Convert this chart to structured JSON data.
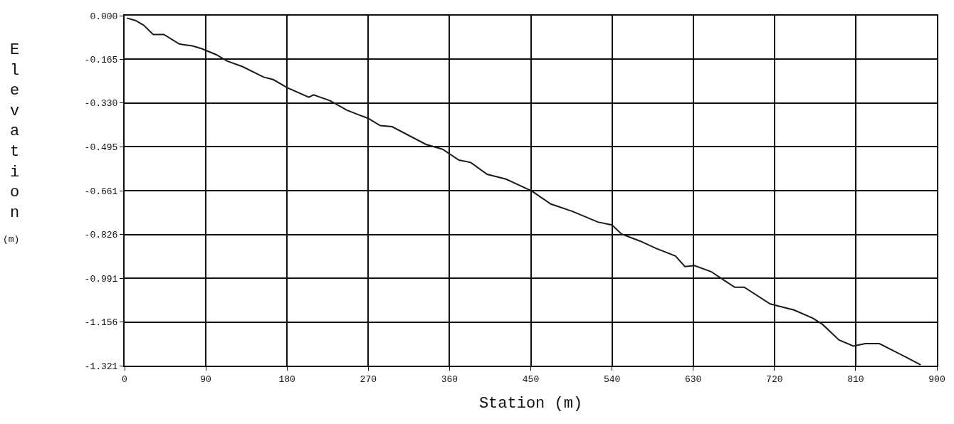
{
  "chart_data": {
    "type": "line",
    "xlabel": "Station (m)",
    "ylabel": "Elevation (m)",
    "xlim": [
      0,
      900
    ],
    "xticks": [
      0,
      90,
      180,
      270,
      360,
      450,
      540,
      630,
      720,
      810,
      900
    ],
    "ylim": [
      -1.321,
      0
    ],
    "yticks": [
      {
        "value": 0,
        "label": "0.000"
      },
      {
        "value": -0.165,
        "label": "-0.165"
      },
      {
        "value": -0.33,
        "label": "-0.330"
      },
      {
        "value": -0.495,
        "label": "-0.495"
      },
      {
        "value": -0.661,
        "label": "-0.661"
      },
      {
        "value": -0.826,
        "label": "-0.826"
      },
      {
        "value": -0.991,
        "label": "-0.991"
      },
      {
        "value": -1.156,
        "label": "-1.156"
      },
      {
        "value": -1.321,
        "label": "-1.321"
      }
    ],
    "grid": true,
    "marker": "none",
    "line_style": "solid",
    "series": [
      {
        "color": "#1a1a1a",
        "x": [
          2.6,
          11.9,
          21.1,
          31.6,
          43.5,
          60.6,
          75.1,
          85.6,
          101.4,
          113.3,
          130.4,
          154.1,
          164.6,
          180.4,
          204.1,
          209.4,
          227.8,
          246.3,
          270.0,
          283.2,
          296.3,
          333.9,
          352.2,
          370.4,
          383.5,
          401.7,
          422.6,
          451.3,
          472.2,
          495.7,
          524.4,
          540.0,
          550.5,
          571.3,
          589.3,
          610.3,
          620.8,
          631.3,
          649.7,
          676.0,
          686.5,
          715.4,
          741.7,
          762.7,
          773.2,
          791.6,
          807.4,
          820.5,
          836.3,
          865.2,
          882
        ],
        "values": [
          -0.009,
          -0.018,
          -0.036,
          -0.071,
          -0.071,
          -0.107,
          -0.114,
          -0.125,
          -0.147,
          -0.171,
          -0.192,
          -0.232,
          -0.241,
          -0.272,
          -0.308,
          -0.299,
          -0.321,
          -0.357,
          -0.388,
          -0.415,
          -0.419,
          -0.486,
          -0.504,
          -0.545,
          -0.554,
          -0.599,
          -0.617,
          -0.662,
          -0.711,
          -0.738,
          -0.779,
          -0.79,
          -0.824,
          -0.851,
          -0.879,
          -0.907,
          -0.947,
          -0.943,
          -0.966,
          -1.025,
          -1.025,
          -1.088,
          -1.111,
          -1.142,
          -1.165,
          -1.224,
          -1.247,
          -1.238,
          -1.238,
          -1.288,
          -1.318
        ]
      }
    ]
  }
}
